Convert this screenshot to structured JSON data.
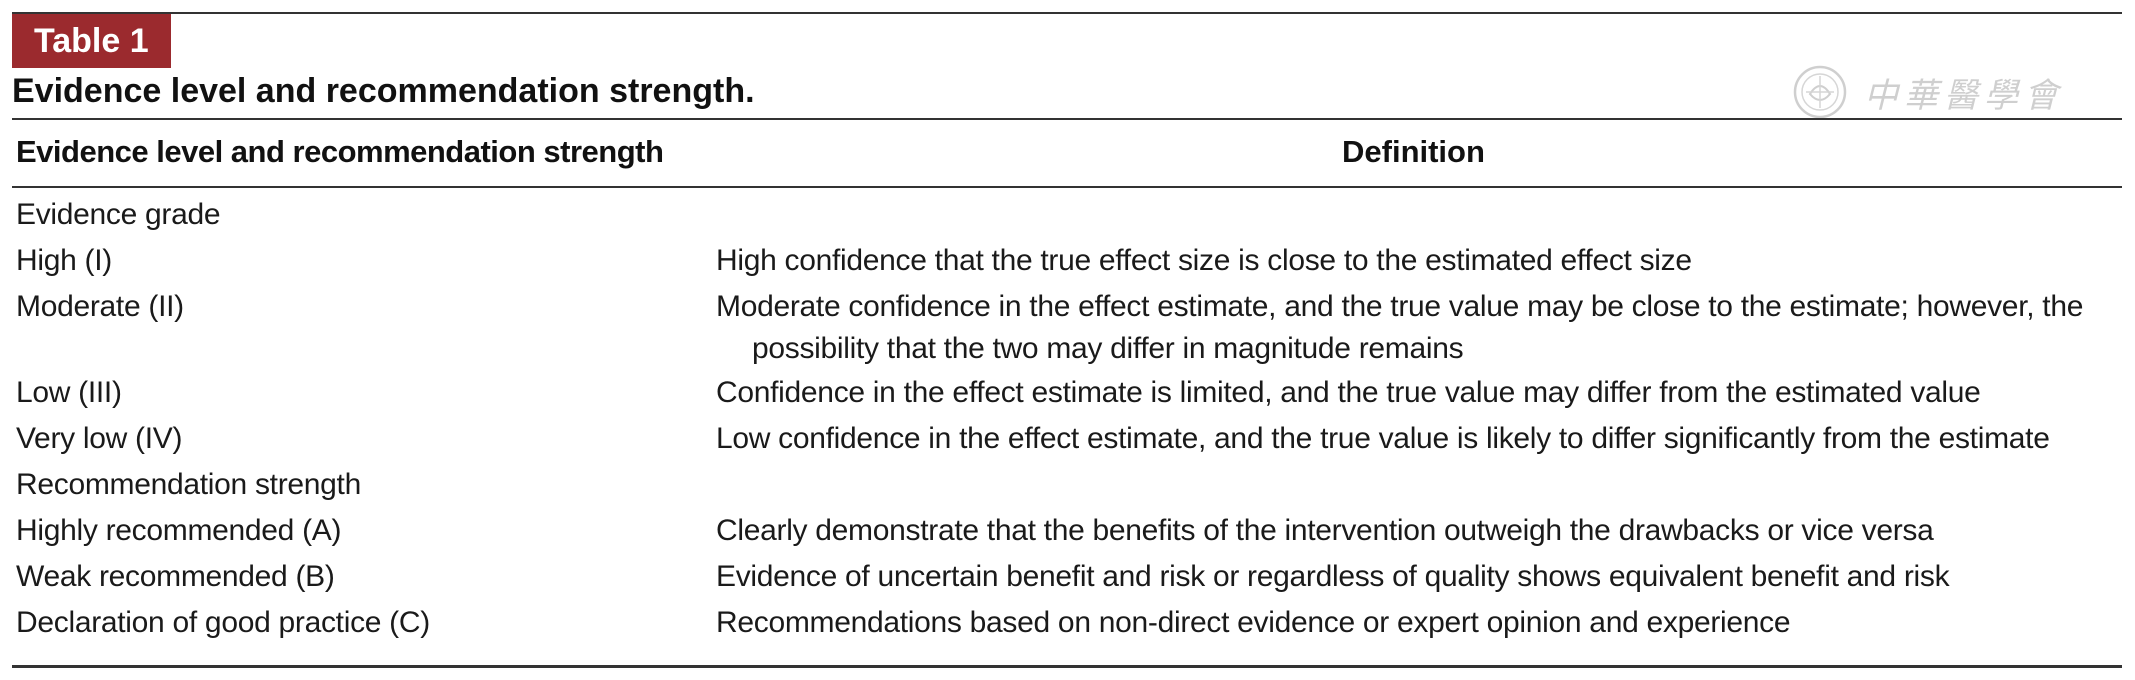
{
  "table": {
    "tag": "Table 1",
    "caption": "Evidence level and recommendation strength.",
    "watermark_text": "中華醫學會",
    "header": {
      "level": "Evidence level and recommendation strength",
      "definition": "Definition"
    },
    "rows": [
      {
        "level": "Evidence grade",
        "definition": ""
      },
      {
        "level": "High (I)",
        "definition": "High confidence that the true effect size is close to the estimated effect size"
      },
      {
        "level": "Moderate (II)",
        "definition": "Moderate confidence in the effect estimate, and the true value may be close to the estimate; however, the possibility that the two may differ in magnitude remains"
      },
      {
        "level": "Low (III)",
        "definition": "Confidence in the effect estimate is limited, and the true value may differ from the estimated value"
      },
      {
        "level": "Very low (IV)",
        "definition": "Low confidence in the effect estimate, and the true value is likely to differ significantly from the estimate"
      },
      {
        "level": "Recommendation strength",
        "definition": ""
      },
      {
        "level": "Highly recommended (A)",
        "definition": "Clearly demonstrate that the benefits of the intervention outweigh the drawbacks or vice versa"
      },
      {
        "level": "Weak recommended (B)",
        "definition": "Evidence of uncertain benefit and risk or regardless of quality shows equivalent benefit and risk"
      },
      {
        "level": "Declaration of good practice (C)",
        "definition": "Recommendations based on non-direct evidence or expert opinion and experience"
      }
    ]
  }
}
